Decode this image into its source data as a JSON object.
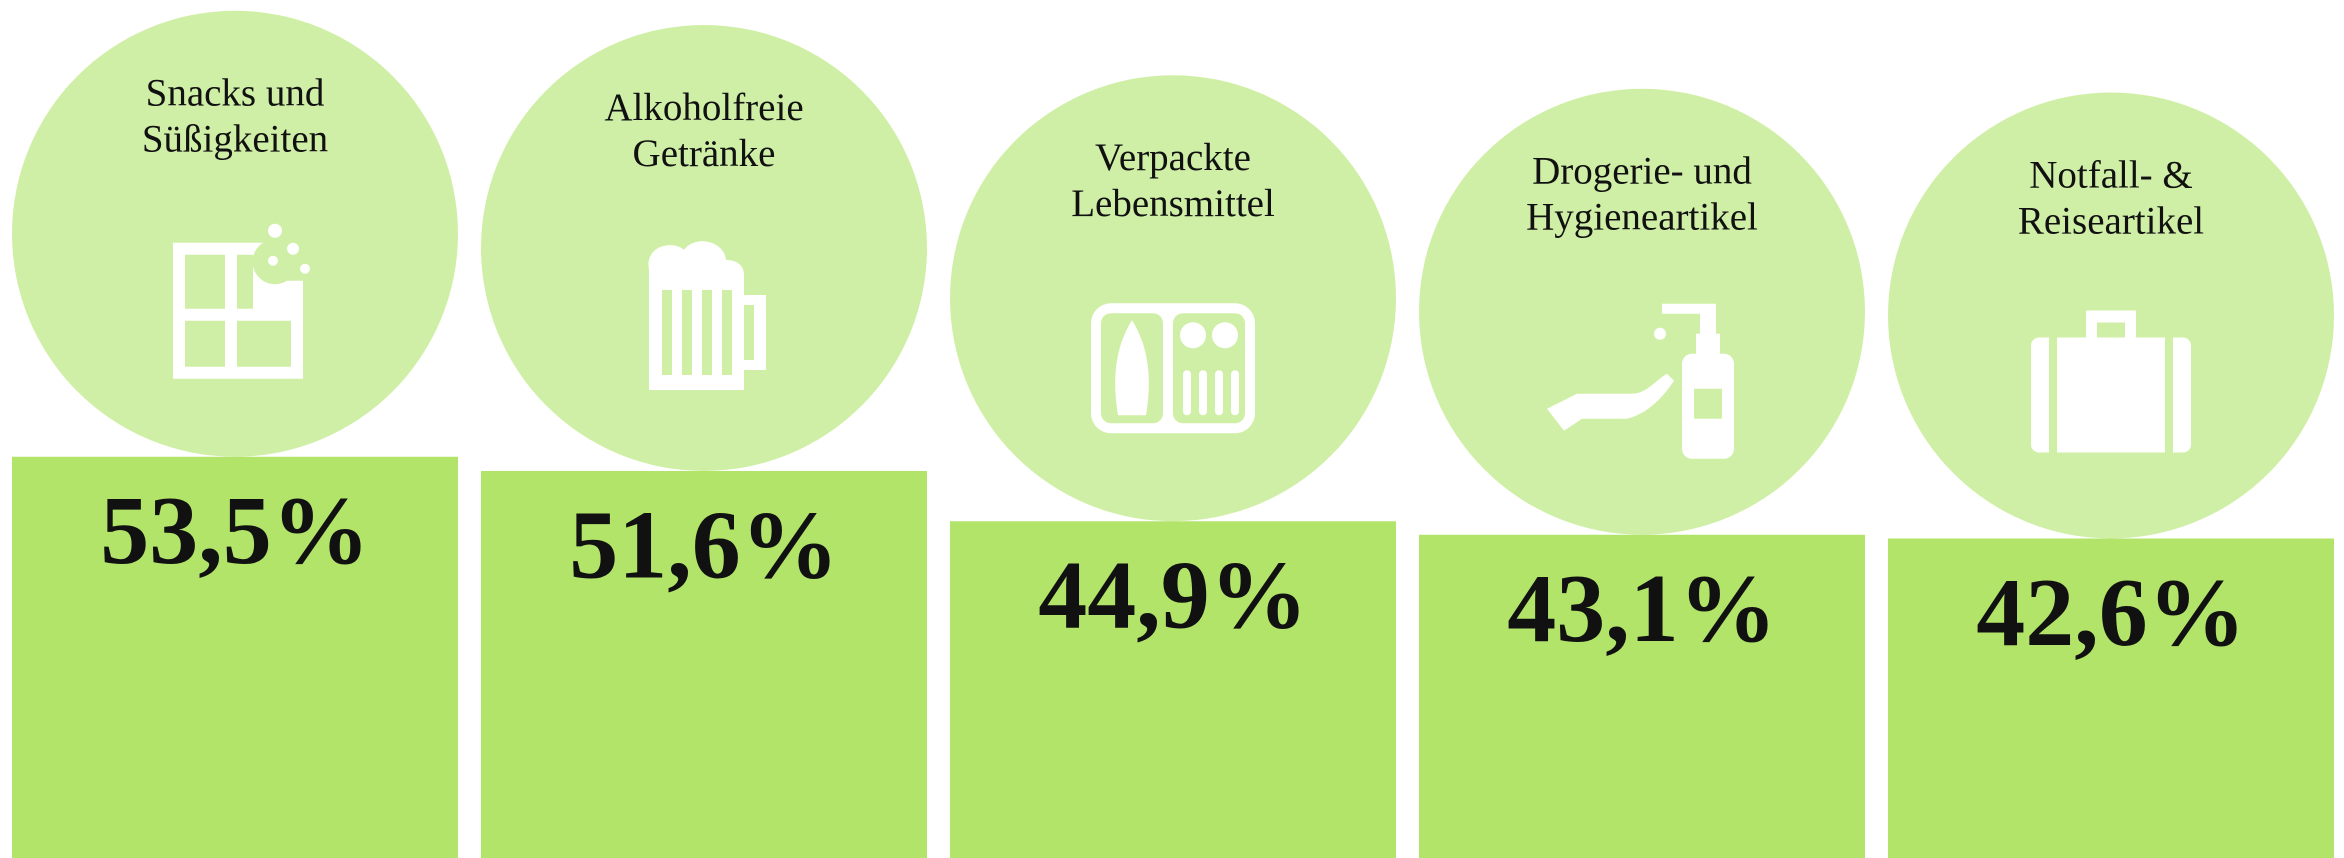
{
  "chart_data": {
    "type": "bar",
    "categories": [
      [
        "Snacks und",
        "Süßigkeiten"
      ],
      [
        "Alkoholfreie",
        "Getränke"
      ],
      [
        "Verpackte",
        "Lebensmittel"
      ],
      [
        "Drogerie- und",
        "Hygieneartikel"
      ],
      [
        "Notfall- &",
        "Reiseartikel"
      ]
    ],
    "values": [
      53.5,
      51.6,
      44.9,
      43.1,
      42.6
    ],
    "value_labels": [
      "53,5%",
      "51,6%",
      "44,9%",
      "43,1%",
      "42,6%"
    ],
    "color": "#b2e46a",
    "circle_color": "#d0efa6"
  }
}
